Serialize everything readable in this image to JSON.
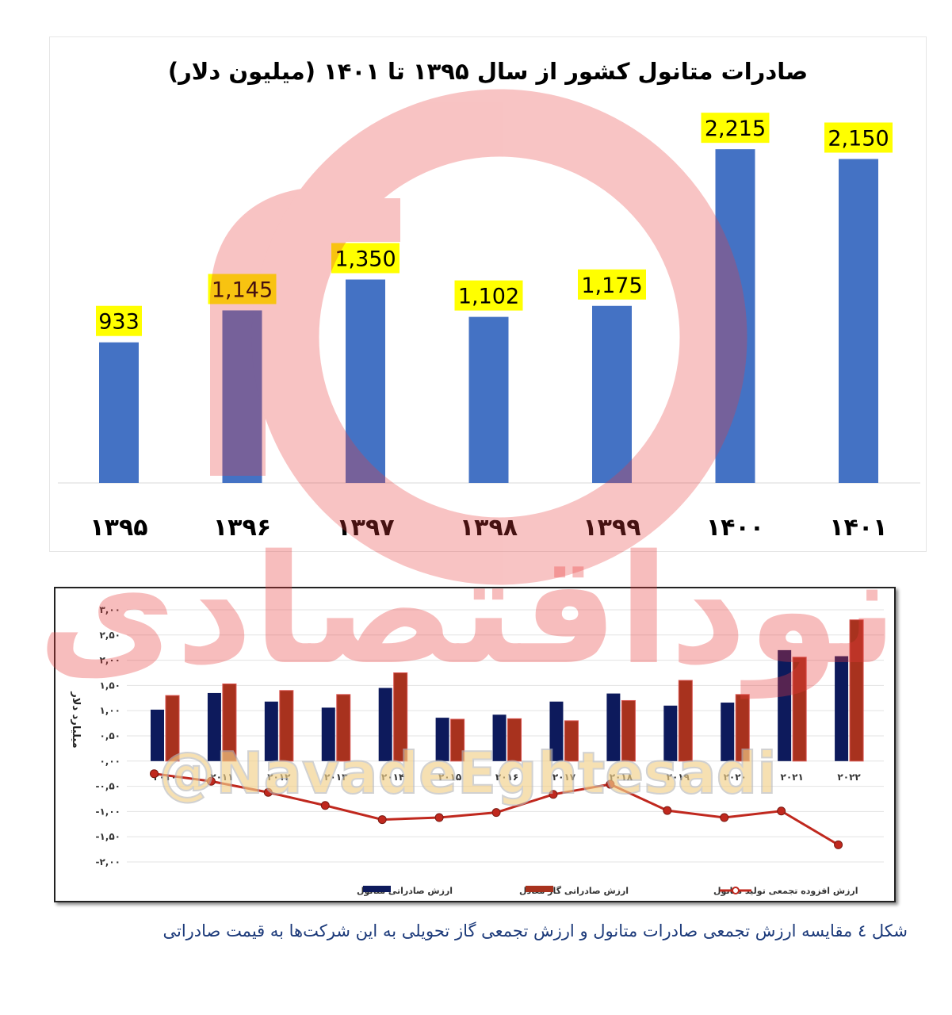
{
  "chart_data": [
    {
      "type": "bar",
      "title": "صادرات متانول کشور از سال ۱۳۹۵ تا ۱۴۰۱ (میلیون دلار)",
      "categories": [
        "۱۳۹۵",
        "۱۳۹۶",
        "۱۳۹۷",
        "۱۳۹۸",
        "۱۳۹۹",
        "۱۴۰۰",
        "۱۴۰۱"
      ],
      "values": [
        933,
        1145,
        1350,
        1102,
        1175,
        2215,
        2150
      ],
      "value_labels": [
        "933",
        "1,145",
        "1,350",
        "1,102",
        "1,175",
        "2,215",
        "2,150"
      ],
      "ylim": [
        0,
        2500
      ],
      "bar_color": "#4472c4",
      "label_bg": "#ffff00",
      "grid": false
    },
    {
      "type": "bar",
      "ylabel": "میلیارد دلار",
      "categories": [
        "۲۰۱۰",
        "۲۰۱۱",
        "۲۰۱۲",
        "۲۰۱۳",
        "۲۰۱۴",
        "۲۰۱۵",
        "۲۰۱۶",
        "۲۰۱۷",
        "۲۰۱۸",
        "۲۰۱۹",
        "۲۰۲۰",
        "۲۰۲۱",
        "۲۰۲۲"
      ],
      "ylim": [
        -2.0,
        3.0
      ],
      "yticks": [
        3.0,
        2.5,
        2.0,
        1.5,
        1.0,
        0.5,
        0.0,
        -0.5,
        -1.0,
        -1.5,
        -2.0
      ],
      "ytick_labels": [
        "۳,۰۰",
        "۲,۵۰",
        "۲,۰۰",
        "۱,۵۰",
        "۱,۰۰",
        "۰,۵۰",
        "۰,۰۰",
        "-۰,۵۰",
        "-۱,۰۰",
        "-۱,۵۰",
        "-۲,۰۰"
      ],
      "grid": true,
      "legend_position": "bottom",
      "series": [
        {
          "name": "ارزش صادراتی متانول",
          "kind": "bar",
          "color": "#0d1a5c",
          "values": [
            1.02,
            1.35,
            1.18,
            1.06,
            1.45,
            0.86,
            0.92,
            1.18,
            1.34,
            1.1,
            1.16,
            2.2,
            2.08
          ]
        },
        {
          "name": "ارزش صادراتی گاز معادل",
          "kind": "bar",
          "color": "#a8321e",
          "values": [
            1.3,
            1.53,
            1.4,
            1.32,
            1.75,
            0.83,
            0.84,
            0.8,
            1.2,
            1.6,
            1.32,
            2.06,
            2.8
          ]
        },
        {
          "name": "ارزش افزوده تجمعی تولید متانول",
          "kind": "line",
          "color": "#c0281e",
          "values": [
            -0.25,
            -0.4,
            -0.62,
            -0.88,
            -1.16,
            -1.12,
            -1.02,
            -0.66,
            -0.46,
            -0.98,
            -1.12,
            -0.99,
            -1.66
          ]
        }
      ]
    }
  ],
  "caption": "شکل ٤ مقایسه ارزش تجمعی صادرات متانول و ارزش تجمعی گاز تحویلی به این شرکت‌ها به قیمت صادراتی",
  "watermark": {
    "text_main": "نوداقتصادی",
    "text_handle": "@NavadeEghtesadi",
    "color": "#e93b3b"
  }
}
